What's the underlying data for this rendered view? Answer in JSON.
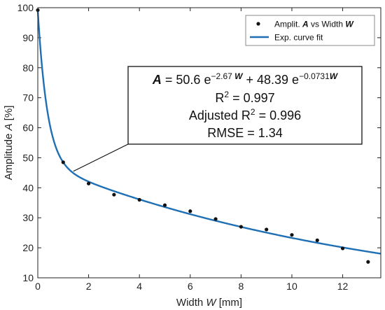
{
  "chart_data": {
    "type": "scatter",
    "xlabel": {
      "prefix": "Width ",
      "var": "W",
      "suffix": " [mm]"
    },
    "ylabel": {
      "prefix": "Amplitude ",
      "var": "A",
      "suffix": " [%]"
    },
    "xlim": [
      0,
      13.5
    ],
    "ylim": [
      10,
      100
    ],
    "xticks": [
      0,
      2,
      4,
      6,
      8,
      10,
      12
    ],
    "yticks": [
      10,
      20,
      30,
      40,
      50,
      60,
      70,
      80,
      90,
      100
    ],
    "grid": false,
    "legend_position": "top-right",
    "series": [
      {
        "name": "Amplit. A vs Width W",
        "type": "scatter",
        "color": "#111111",
        "x": [
          0,
          1,
          2,
          3,
          4,
          5,
          6,
          7,
          8,
          9,
          10,
          11,
          12,
          13
        ],
        "y": [
          99.2,
          48.5,
          41.4,
          37.7,
          36.0,
          34.2,
          32.2,
          29.6,
          27.0,
          26.1,
          24.3,
          22.5,
          19.8,
          15.3
        ]
      },
      {
        "name": "Exp. curve fit",
        "type": "line",
        "color": "#1f6fb5",
        "model": {
          "a": 50.6,
          "b": -2.67,
          "c": 48.39,
          "d": -0.0731
        }
      }
    ],
    "annotation": {
      "equation": {
        "lhs": "A",
        "eq": " = 50.6 e",
        "exp1": "−2.67 ",
        "exp1_var": "W",
        "plus": " + 48.39 e",
        "exp2": "−0.0731",
        "exp2_var": "W"
      },
      "r2": {
        "label": "R",
        "sup": "2",
        "value": " = 0.997"
      },
      "adj_r2": {
        "label": "Adjusted R",
        "sup": "2",
        "value": " = 0.996"
      },
      "rmse": "RMSE = 1.34",
      "pointer_x": 1.4,
      "pointer_y": 45.5
    },
    "legend": {
      "scatter_label": {
        "prefix": "Amplit. ",
        "var1": "A",
        "mid": " vs Width ",
        "var2": "W"
      },
      "line_label": "Exp. curve fit"
    }
  }
}
